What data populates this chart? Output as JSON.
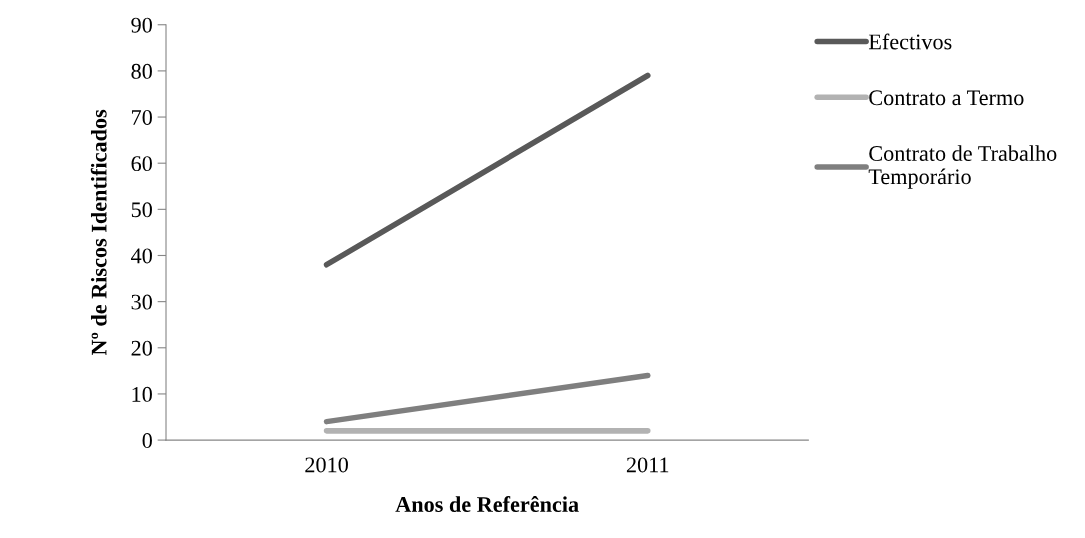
{
  "chart_data": {
    "type": "line",
    "xlabel": "Anos de Referência",
    "ylabel": "Nº de Riscos Identificados",
    "categories": [
      "2010",
      "2011"
    ],
    "series": [
      {
        "name": "Efectivos",
        "color": "#595959",
        "values": [
          38,
          79
        ]
      },
      {
        "name": "Contrato a Termo",
        "color": "#b2b2b2",
        "values": [
          2,
          2
        ]
      },
      {
        "name": "Contrato de Trabalho Temporário",
        "color": "#7f7f7f",
        "values": [
          4,
          14
        ]
      }
    ],
    "ylim": [
      0,
      90
    ],
    "yticks": [
      0,
      10,
      20,
      30,
      40,
      50,
      60,
      70,
      80,
      90
    ],
    "grid": false,
    "legend": "right",
    "marker": "none",
    "line_style": "solid"
  }
}
